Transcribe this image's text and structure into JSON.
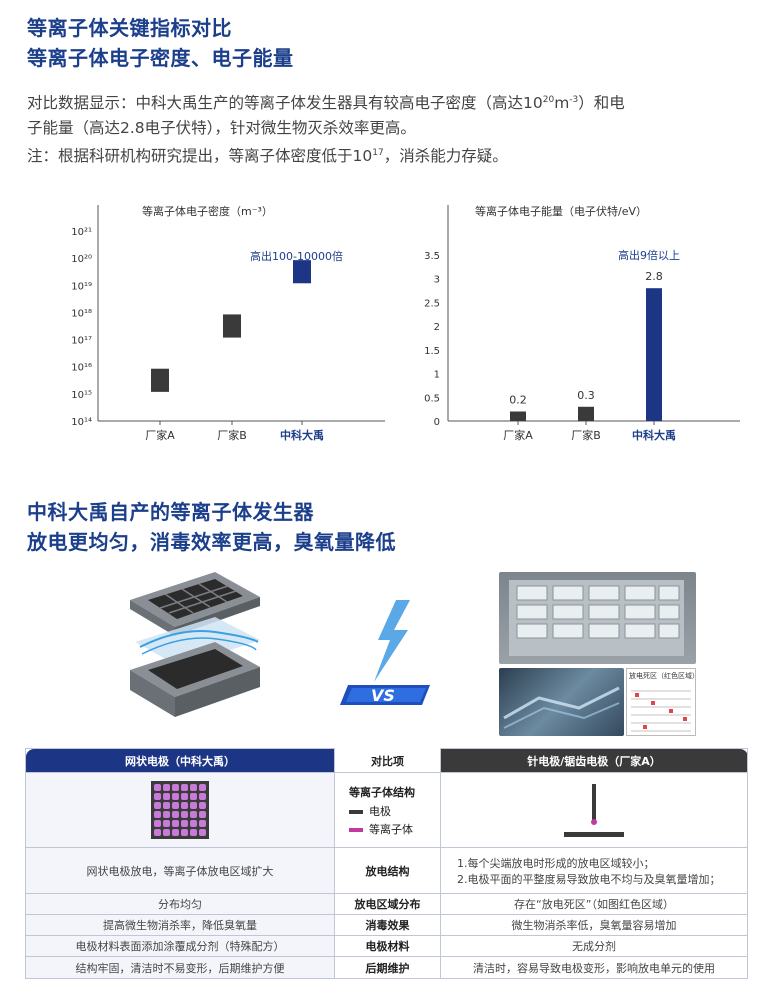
{
  "section1": {
    "title_line1": "等离子体关键指标对比",
    "title_line2": "等离子体电子密度、电子能量"
  },
  "intro": {
    "line1_a": "对比数据显示：中科大禹生产的等离子体发生器具有较高电子密度（高达10",
    "line1_sup": "20",
    "line1_b": "m",
    "line1_sup2": "-3",
    "line1_c": "）和电",
    "line2": "子能量（高达2.8电子伏特），针对微生物灭杀效率更高。",
    "line3_a": "注：根据科研机构研究提出，等离子体密度低于10",
    "line3_sup": "17",
    "line3_b": "，消杀能力存疑。"
  },
  "chart_data": [
    {
      "type": "bar",
      "title": "等离子体电子密度（m⁻³）",
      "yscale": "log",
      "ylim": [
        100000000000000.0,
        1e+21
      ],
      "yticks": [
        "10²¹",
        "10²⁰",
        "10¹⁹",
        "10¹⁸",
        "10¹⁷",
        "10¹⁶",
        "10¹⁵",
        "10¹⁴"
      ],
      "categories": [
        "厂家A",
        "厂家B",
        "中科大禹"
      ],
      "ranges": [
        [
          1000000000000000.0,
          1e+16
        ],
        [
          1e+17,
          1e+18
        ],
        [
          1e+19,
          1e+20
        ]
      ],
      "colors": [
        "#3a3a3a",
        "#3a3a3a",
        "#1c3585"
      ],
      "annotation": "高出100-10000倍"
    },
    {
      "type": "bar",
      "title": "等离子体电子能量（电子伏特/eV）",
      "ylim": [
        0,
        3.5
      ],
      "yticks": [
        "3.5",
        "3",
        "2.5",
        "2",
        "1.5",
        "1",
        "0.5",
        "0"
      ],
      "categories": [
        "厂家A",
        "厂家B",
        "中科大禹"
      ],
      "values": [
        0.2,
        0.3,
        2.8
      ],
      "value_labels": [
        "0.2",
        "0.3",
        "2.8"
      ],
      "colors": [
        "#3a3a3a",
        "#3a3a3a",
        "#1c3585"
      ],
      "annotation": "高出9倍以上"
    }
  ],
  "section2": {
    "title_line1": "中科大禹自产的等离子体发生器",
    "title_line2": "放电更均匀，消毒效率更高，臭氧量降低"
  },
  "vs_label": "VS",
  "photo_caption": "放电死区（红色区域）",
  "table": {
    "header": {
      "left": "网状电极（中科大禹）",
      "mid": "对比项",
      "right": "针电极/锯齿电极（厂家A）"
    },
    "structure": {
      "label": "等离子体结构",
      "legend_electrode": "电极",
      "legend_plasma": "等离子体"
    },
    "rows": [
      {
        "left": "网状电极放电，等离子体放电区域扩大",
        "mid": "放电结构",
        "right_line1": "1.每个尖端放电时形成的放电区域较小；",
        "right_line2": "2.电极平面的平整度易导致放电不均与及臭氧量增加；"
      },
      {
        "left": "分布均匀",
        "mid": "放电区域分布",
        "right": "存在“放电死区”（如图红色区域）"
      },
      {
        "left": "提高微生物消杀率，降低臭氧量",
        "mid": "消毒效果",
        "right": "微生物消杀率低，臭氧量容易增加"
      },
      {
        "left": "电极材料表面添加涂覆成分剂（特殊配方）",
        "mid": "电极材料",
        "right": "无成分剂"
      },
      {
        "left": "结构牢固，清洁时不易变形，后期维护方便",
        "mid": "后期维护",
        "right": "清洁时，容易导致电极变形，影响放电单元的使用"
      }
    ]
  }
}
